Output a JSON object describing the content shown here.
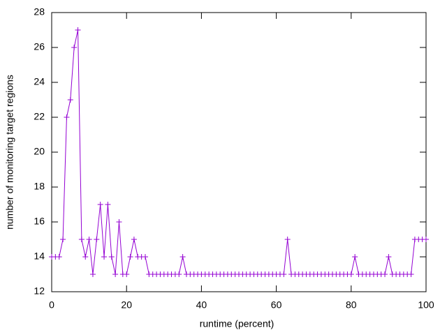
{
  "chart_data": {
    "type": "line",
    "xlabel": "runtime (percent)",
    "ylabel": "number of monitoring target regions",
    "x": [
      0,
      1,
      2,
      3,
      4,
      5,
      6,
      7,
      8,
      9,
      10,
      11,
      12,
      13,
      14,
      15,
      16,
      17,
      18,
      19,
      20,
      21,
      22,
      23,
      24,
      25,
      26,
      27,
      28,
      29,
      30,
      31,
      32,
      33,
      34,
      35,
      36,
      37,
      38,
      39,
      40,
      41,
      42,
      43,
      44,
      45,
      46,
      47,
      48,
      49,
      50,
      51,
      52,
      53,
      54,
      55,
      56,
      57,
      58,
      59,
      60,
      61,
      62,
      63,
      64,
      65,
      66,
      67,
      68,
      69,
      70,
      71,
      72,
      73,
      74,
      75,
      76,
      77,
      78,
      79,
      80,
      81,
      82,
      83,
      84,
      85,
      86,
      87,
      88,
      89,
      90,
      91,
      92,
      93,
      94,
      95,
      96,
      97,
      98,
      99,
      100
    ],
    "values": [
      14,
      14,
      14,
      15,
      22,
      23,
      26,
      27,
      15,
      14,
      15,
      13,
      15,
      17,
      14,
      17,
      14,
      13,
      16,
      13,
      13,
      14,
      15,
      14,
      14,
      14,
      13,
      13,
      13,
      13,
      13,
      13,
      13,
      13,
      13,
      14,
      13,
      13,
      13,
      13,
      13,
      13,
      13,
      13,
      13,
      13,
      13,
      13,
      13,
      13,
      13,
      13,
      13,
      13,
      13,
      13,
      13,
      13,
      13,
      13,
      13,
      13,
      13,
      15,
      13,
      13,
      13,
      13,
      13,
      13,
      13,
      13,
      13,
      13,
      13,
      13,
      13,
      13,
      13,
      13,
      13,
      14,
      13,
      13,
      13,
      13,
      13,
      13,
      13,
      13,
      14,
      13,
      13,
      13,
      13,
      13,
      13,
      15,
      15,
      15,
      15
    ],
    "color": "#9400d3",
    "xlim": [
      0,
      100
    ],
    "xticks": [
      0,
      20,
      40,
      60,
      80,
      100
    ],
    "ylim": [
      12,
      28
    ],
    "yticks": [
      12,
      14,
      16,
      18,
      20,
      22,
      24,
      26,
      28
    ]
  }
}
